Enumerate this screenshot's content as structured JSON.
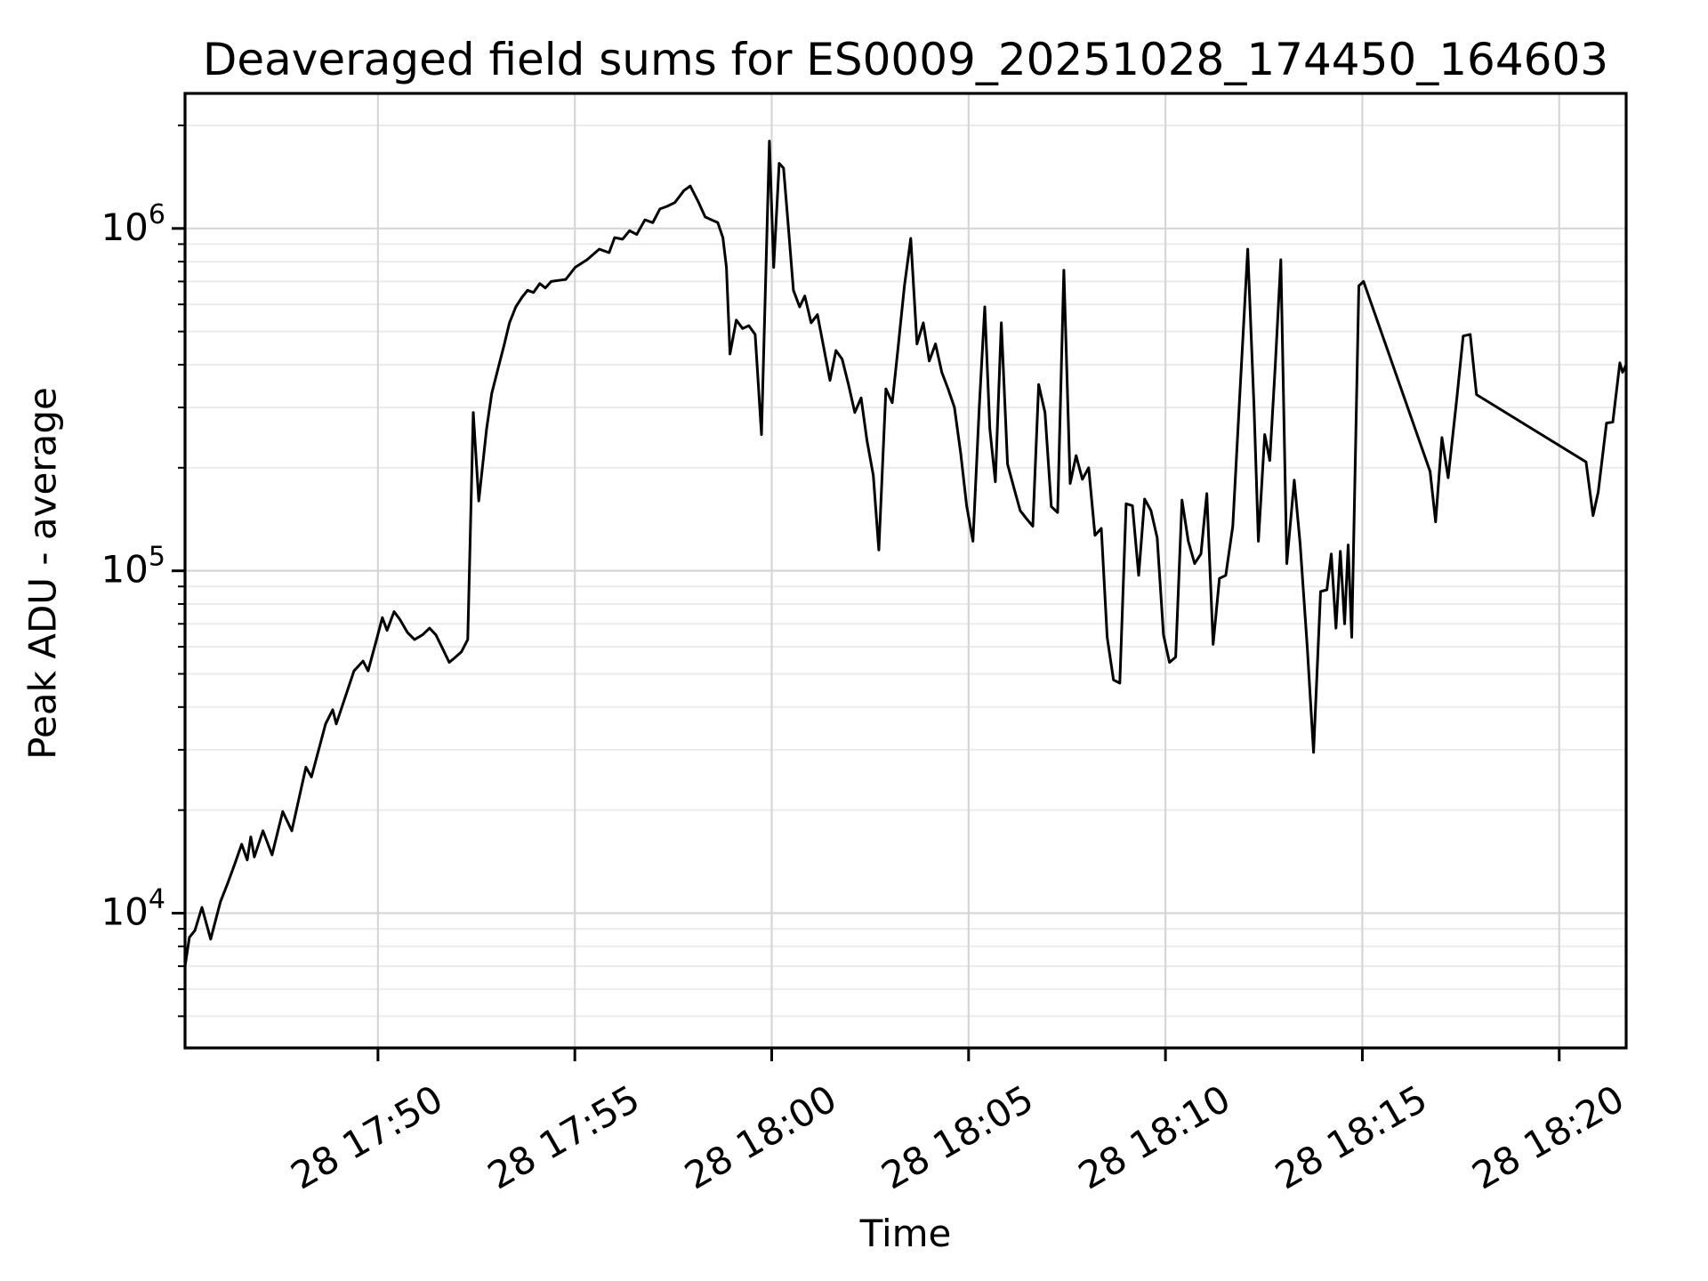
{
  "chart_data": {
    "type": "line",
    "title": "Deaveraged field sums for ES0009_20251028_174450_164603",
    "xlabel": "Time",
    "ylabel": "Peak ADU - average",
    "legend": null,
    "grid": {
      "major": true,
      "minor": true,
      "major_color": "#d6d6d6",
      "minor_color": "#ebebeb"
    },
    "line_color": "#000000",
    "background_color": "#ffffff",
    "x_axis": {
      "unit": "minutes after day-28 17:45:00",
      "range": [
        0.1,
        36.7
      ],
      "ticks": [
        {
          "t": 5,
          "label": "28 17:50"
        },
        {
          "t": 10,
          "label": "28 17:55"
        },
        {
          "t": 15,
          "label": "28 18:00"
        },
        {
          "t": 20,
          "label": "28 18:05"
        },
        {
          "t": 25,
          "label": "28 18:10"
        },
        {
          "t": 30,
          "label": "28 18:15"
        },
        {
          "t": 35,
          "label": "28 18:20"
        }
      ],
      "label_rotation_deg": 30
    },
    "y_axis": {
      "scale": "log",
      "range": [
        4040,
        2480000
      ],
      "major_ticks": [
        {
          "value": 10000,
          "base": "10",
          "exponent": "4"
        },
        {
          "value": 100000,
          "base": "10",
          "exponent": "5"
        },
        {
          "value": 1000000,
          "base": "10",
          "exponent": "6"
        }
      ],
      "minor_tick_decades": [
        3,
        4,
        5,
        6
      ],
      "minor_tick_mantissas": [
        2,
        3,
        4,
        5,
        6,
        7,
        8,
        9
      ]
    },
    "series": [
      {
        "name": "Peak ADU - average",
        "color": "#000000",
        "points": [
          [
            0.1,
            7000
          ],
          [
            0.21,
            8500
          ],
          [
            0.35,
            8900
          ],
          [
            0.53,
            10400
          ],
          [
            0.75,
            8400
          ],
          [
            1.0,
            10800
          ],
          [
            1.18,
            12200
          ],
          [
            1.36,
            13900
          ],
          [
            1.54,
            15900
          ],
          [
            1.68,
            14300
          ],
          [
            1.77,
            16700
          ],
          [
            1.86,
            14600
          ],
          [
            2.08,
            17400
          ],
          [
            2.31,
            14800
          ],
          [
            2.58,
            19800
          ],
          [
            2.81,
            17400
          ],
          [
            3.17,
            26700
          ],
          [
            3.31,
            25000
          ],
          [
            3.67,
            35700
          ],
          [
            3.85,
            39300
          ],
          [
            3.94,
            35700
          ],
          [
            4.39,
            51000
          ],
          [
            4.62,
            54500
          ],
          [
            4.75,
            51000
          ],
          [
            4.98,
            64000
          ],
          [
            5.11,
            73000
          ],
          [
            5.23,
            67000
          ],
          [
            5.41,
            76000
          ],
          [
            5.56,
            72000
          ],
          [
            5.75,
            66000
          ],
          [
            5.93,
            63000
          ],
          [
            6.13,
            65000
          ],
          [
            6.31,
            68000
          ],
          [
            6.47,
            65000
          ],
          [
            6.65,
            59000
          ],
          [
            6.81,
            54000
          ],
          [
            6.97,
            56000
          ],
          [
            7.12,
            58000
          ],
          [
            7.28,
            63000
          ],
          [
            7.42,
            290000
          ],
          [
            7.56,
            160000
          ],
          [
            7.76,
            260000
          ],
          [
            7.89,
            330000
          ],
          [
            8.05,
            390000
          ],
          [
            8.21,
            460000
          ],
          [
            8.34,
            530000
          ],
          [
            8.5,
            590000
          ],
          [
            8.66,
            630000
          ],
          [
            8.8,
            660000
          ],
          [
            8.95,
            650000
          ],
          [
            9.11,
            690000
          ],
          [
            9.25,
            670000
          ],
          [
            9.4,
            700000
          ],
          [
            9.59,
            705000
          ],
          [
            9.77,
            710000
          ],
          [
            10.01,
            770000
          ],
          [
            10.31,
            810000
          ],
          [
            10.62,
            870000
          ],
          [
            10.87,
            850000
          ],
          [
            11.01,
            940000
          ],
          [
            11.21,
            930000
          ],
          [
            11.39,
            985000
          ],
          [
            11.57,
            960000
          ],
          [
            11.78,
            1060000
          ],
          [
            11.98,
            1040000
          ],
          [
            12.16,
            1140000
          ],
          [
            12.34,
            1160000
          ],
          [
            12.54,
            1190000
          ],
          [
            12.77,
            1290000
          ],
          [
            12.93,
            1330000
          ],
          [
            13.13,
            1200000
          ],
          [
            13.31,
            1080000
          ],
          [
            13.47,
            1060000
          ],
          [
            13.63,
            1040000
          ],
          [
            13.76,
            940000
          ],
          [
            13.85,
            770000
          ],
          [
            13.94,
            430000
          ],
          [
            14.1,
            540000
          ],
          [
            14.26,
            510000
          ],
          [
            14.42,
            520000
          ],
          [
            14.58,
            490000
          ],
          [
            14.74,
            250000
          ],
          [
            14.94,
            1800000
          ],
          [
            15.05,
            770000
          ],
          [
            15.19,
            1550000
          ],
          [
            15.3,
            1500000
          ],
          [
            15.41,
            1050000
          ],
          [
            15.55,
            660000
          ],
          [
            15.71,
            590000
          ],
          [
            15.84,
            635000
          ],
          [
            16.0,
            530000
          ],
          [
            16.16,
            560000
          ],
          [
            16.32,
            450000
          ],
          [
            16.48,
            360000
          ],
          [
            16.63,
            440000
          ],
          [
            16.79,
            415000
          ],
          [
            16.95,
            350000
          ],
          [
            17.11,
            290000
          ],
          [
            17.27,
            320000
          ],
          [
            17.42,
            240000
          ],
          [
            17.58,
            190000
          ],
          [
            17.72,
            115000
          ],
          [
            17.9,
            340000
          ],
          [
            18.06,
            310000
          ],
          [
            18.21,
            450000
          ],
          [
            18.37,
            680000
          ],
          [
            18.53,
            935000
          ],
          [
            18.69,
            460000
          ],
          [
            18.85,
            530000
          ],
          [
            19.0,
            410000
          ],
          [
            19.16,
            460000
          ],
          [
            19.32,
            380000
          ],
          [
            19.48,
            340000
          ],
          [
            19.64,
            300000
          ],
          [
            19.8,
            220000
          ],
          [
            19.95,
            155000
          ],
          [
            20.11,
            122000
          ],
          [
            20.27,
            300000
          ],
          [
            20.41,
            590000
          ],
          [
            20.54,
            260000
          ],
          [
            20.68,
            182000
          ],
          [
            20.83,
            530000
          ],
          [
            20.99,
            205000
          ],
          [
            21.15,
            175000
          ],
          [
            21.31,
            150000
          ],
          [
            21.47,
            142000
          ],
          [
            21.63,
            135000
          ],
          [
            21.78,
            350000
          ],
          [
            21.94,
            290000
          ],
          [
            22.1,
            154000
          ],
          [
            22.26,
            148000
          ],
          [
            22.42,
            755000
          ],
          [
            22.58,
            180000
          ],
          [
            22.73,
            217000
          ],
          [
            22.89,
            185000
          ],
          [
            23.05,
            200000
          ],
          [
            23.21,
            127000
          ],
          [
            23.37,
            133000
          ],
          [
            23.52,
            64000
          ],
          [
            23.68,
            48000
          ],
          [
            23.84,
            47000
          ],
          [
            24.0,
            157000
          ],
          [
            24.16,
            155000
          ],
          [
            24.32,
            97000
          ],
          [
            24.47,
            162000
          ],
          [
            24.63,
            150000
          ],
          [
            24.79,
            125000
          ],
          [
            24.95,
            65000
          ],
          [
            25.1,
            54000
          ],
          [
            25.26,
            56000
          ],
          [
            25.42,
            161000
          ],
          [
            25.58,
            122000
          ],
          [
            25.74,
            105000
          ],
          [
            25.9,
            112000
          ],
          [
            26.05,
            168000
          ],
          [
            26.21,
            61000
          ],
          [
            26.37,
            95000
          ],
          [
            26.53,
            97000
          ],
          [
            26.71,
            135000
          ],
          [
            26.89,
            330000
          ],
          [
            27.09,
            870000
          ],
          [
            27.25,
            300000
          ],
          [
            27.36,
            122000
          ],
          [
            27.52,
            250000
          ],
          [
            27.65,
            210000
          ],
          [
            27.79,
            400000
          ],
          [
            27.93,
            810000
          ],
          [
            28.08,
            105000
          ],
          [
            28.27,
            184000
          ],
          [
            28.42,
            120000
          ],
          [
            28.6,
            60000
          ],
          [
            28.76,
            29500
          ],
          [
            28.94,
            87000
          ],
          [
            29.1,
            88000
          ],
          [
            29.21,
            112000
          ],
          [
            29.33,
            68000
          ],
          [
            29.44,
            114000
          ],
          [
            29.55,
            70000
          ],
          [
            29.64,
            119000
          ],
          [
            29.73,
            64000
          ],
          [
            29.91,
            680000
          ],
          [
            30.03,
            700000
          ],
          [
            31.72,
            195000
          ],
          [
            31.86,
            139000
          ],
          [
            32.02,
            245000
          ],
          [
            32.18,
            187000
          ],
          [
            32.4,
            320000
          ],
          [
            32.56,
            485000
          ],
          [
            32.74,
            490000
          ],
          [
            32.9,
            327000
          ],
          [
            35.68,
            208000
          ],
          [
            35.86,
            145000
          ],
          [
            35.99,
            170000
          ],
          [
            36.2,
            270000
          ],
          [
            36.36,
            272000
          ],
          [
            36.54,
            405000
          ],
          [
            36.61,
            380000
          ],
          [
            36.7,
            400000
          ]
        ]
      }
    ]
  }
}
